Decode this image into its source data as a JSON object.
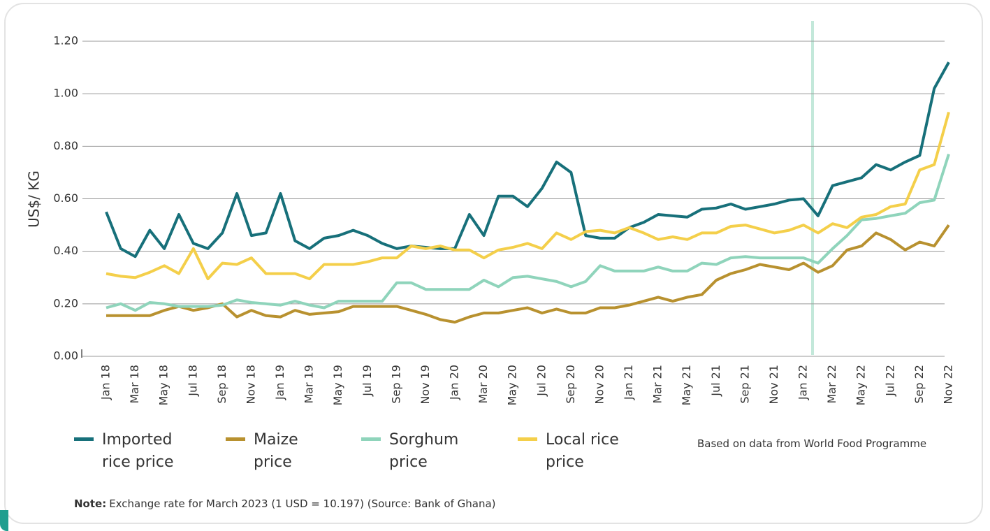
{
  "chart_data": {
    "type": "line",
    "y_label": "US$/ KG",
    "categories": [
      "Jan 18",
      null,
      "Mar 18",
      null,
      "May 18",
      null,
      "Jul 18",
      null,
      "Sep 18",
      null,
      "Nov 18",
      null,
      "Jan 19",
      null,
      "Mar 19",
      null,
      "May 19",
      null,
      "Jul 19",
      null,
      "Sep 19",
      null,
      "Nov 19",
      null,
      "Jan 20",
      null,
      "Mar 20",
      null,
      "May 20",
      null,
      "Jul 20",
      null,
      "Sep 20",
      null,
      "Nov 20",
      null,
      "Jan 21",
      null,
      "Mar 21",
      null,
      "May 21",
      null,
      "Jul 21",
      null,
      "Sep 21",
      null,
      "Nov 21",
      null,
      "Jan 22",
      null,
      "Mar 22",
      null,
      "May 22",
      null,
      "Jul 22",
      null,
      "Sep 22",
      null,
      "Nov 22"
    ],
    "series": [
      {
        "name": "Imported rice price",
        "color": "#17707a",
        "values": [
          0.55,
          0.41,
          0.38,
          0.48,
          0.41,
          0.54,
          0.43,
          0.41,
          0.47,
          0.62,
          0.46,
          0.47,
          0.62,
          0.44,
          0.41,
          0.45,
          0.46,
          0.48,
          0.46,
          0.43,
          0.41,
          0.42,
          0.415,
          0.41,
          0.41,
          0.54,
          0.46,
          0.61,
          0.61,
          0.57,
          0.64,
          0.74,
          0.7,
          0.46,
          0.45,
          0.45,
          0.49,
          0.51,
          0.54,
          0.535,
          0.53,
          0.56,
          0.565,
          0.58,
          0.56,
          0.57,
          0.58,
          0.595,
          0.6,
          0.535,
          0.65,
          0.665,
          0.68,
          0.73,
          0.71,
          0.74,
          0.765,
          1.02,
          1.12
        ]
      },
      {
        "name": "Maize price",
        "color": "#b8912f",
        "values": [
          0.155,
          0.155,
          0.155,
          0.155,
          0.175,
          0.19,
          0.175,
          0.185,
          0.2,
          0.15,
          0.175,
          0.155,
          0.15,
          0.175,
          0.16,
          0.165,
          0.17,
          0.19,
          0.19,
          0.19,
          0.19,
          0.175,
          0.16,
          0.14,
          0.13,
          0.15,
          0.165,
          0.165,
          0.175,
          0.185,
          0.165,
          0.18,
          0.165,
          0.165,
          0.185,
          0.185,
          0.195,
          0.21,
          0.225,
          0.21,
          0.225,
          0.235,
          0.29,
          0.315,
          0.33,
          0.35,
          0.34,
          0.33,
          0.355,
          0.32,
          0.345,
          0.405,
          0.42,
          0.47,
          0.445,
          0.405,
          0.435,
          0.42,
          0.5
        ]
      },
      {
        "name": "Sorghum price",
        "color": "#8fd4bb",
        "values": [
          0.185,
          0.2,
          0.175,
          0.205,
          0.2,
          0.19,
          0.19,
          0.19,
          0.195,
          0.215,
          0.205,
          0.2,
          0.195,
          0.21,
          0.195,
          0.185,
          0.21,
          0.21,
          0.21,
          0.21,
          0.28,
          0.28,
          0.255,
          0.255,
          0.255,
          0.255,
          0.29,
          0.265,
          0.3,
          0.305,
          0.295,
          0.285,
          0.265,
          0.285,
          0.345,
          0.325,
          0.325,
          0.325,
          0.34,
          0.325,
          0.325,
          0.355,
          0.35,
          0.375,
          0.38,
          0.375,
          0.375,
          0.375,
          0.375,
          0.355,
          0.41,
          0.46,
          0.52,
          0.525,
          0.535,
          0.545,
          0.585,
          0.595,
          0.77
        ]
      },
      {
        "name": "Local rice price",
        "color": "#f4cf4a",
        "values": [
          0.315,
          0.305,
          0.3,
          0.32,
          0.345,
          0.315,
          0.41,
          0.295,
          0.355,
          0.35,
          0.375,
          0.315,
          0.315,
          0.315,
          0.295,
          0.35,
          0.35,
          0.35,
          0.36,
          0.375,
          0.375,
          0.42,
          0.41,
          0.42,
          0.405,
          0.405,
          0.375,
          0.405,
          0.415,
          0.43,
          0.41,
          0.47,
          0.445,
          0.475,
          0.48,
          0.47,
          0.49,
          0.47,
          0.445,
          0.455,
          0.445,
          0.47,
          0.47,
          0.495,
          0.5,
          0.485,
          0.47,
          0.48,
          0.5,
          0.47,
          0.505,
          0.49,
          0.53,
          0.54,
          0.57,
          0.58,
          0.71,
          0.73,
          0.93
        ]
      }
    ],
    "ylim": [
      0,
      1.2
    ],
    "yticks": [
      {
        "value": 0,
        "label": "0.00"
      },
      {
        "value": 0.2,
        "label": "0.20"
      },
      {
        "value": 0.4,
        "label": "0.40"
      },
      {
        "value": 0.6,
        "label": "0.60"
      },
      {
        "value": 0.8,
        "label": "0.80"
      },
      {
        "value": 1.0,
        "label": "1.00"
      },
      {
        "value": 1.2,
        "label": "1.20"
      }
    ],
    "grid": true,
    "source": "Based on data from World Food Programme",
    "note_label": "Note:",
    "note": "Exchange rate for March 2023 (1 USD = 10.197) (Source: Bank of Ghana)"
  }
}
